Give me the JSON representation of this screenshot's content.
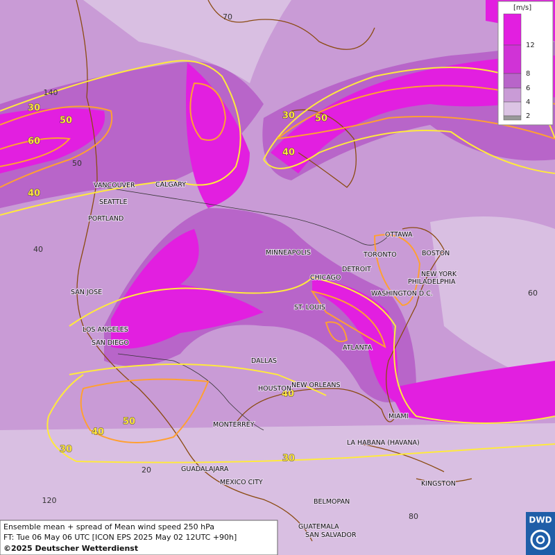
{
  "legend": {
    "unit": "[m/s]",
    "ticks": [
      12,
      8,
      6,
      4,
      2
    ]
  },
  "cities": [
    "VANCOUVER",
    "CALGARY",
    "SEATTLE",
    "PORTLAND",
    "MINNEAPOLIS",
    "TORONTO",
    "OTTAWA",
    "BOSTON",
    "DETROIT",
    "CHICAGO",
    "NEW YORK",
    "PHILADELPHIA",
    "WASHINGTON D.C.",
    "SAN JOSE",
    "ST. LOUIS",
    "LOS ANGELES",
    "SAN DIEGO",
    "ATLANTA",
    "DALLAS",
    "HOUSTON",
    "NEW ORLEANS",
    "MIAMI",
    "MONTERREY",
    "LA HABANA (HAVANA)",
    "GUADALAJARA",
    "MEXICO CITY",
    "KINGSTON",
    "BELMOPAN",
    "GUATEMALA",
    "SAN SALVADOR"
  ],
  "contour_labels": [
    30,
    50,
    60,
    40,
    30,
    50,
    40,
    40,
    50,
    40,
    30,
    30
  ],
  "grid_labels": [
    70,
    140,
    50,
    40,
    60,
    20,
    120,
    80
  ],
  "caption": [
    "Ensemble mean + spread of Mean wind speed 250 hPa",
    "FT: Tue 06 May 06 UTC [ICON EPS 2025 May 02 12UTC +90h]",
    "©2025 Deutscher Wetterdienst"
  ],
  "logo": "DWD"
}
